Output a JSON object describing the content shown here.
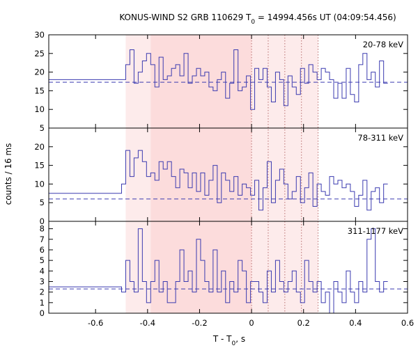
{
  "chart_data": {
    "type": "line",
    "title_parts": [
      "KONUS-WIND S2 GRB 110629 T",
      "0",
      " = 14994.456s UT (04:09:54.456)"
    ],
    "xlabel_parts": [
      "T - T",
      "0",
      ", s"
    ],
    "ylabel": "counts / 16 ms",
    "xlim": [
      -0.78,
      0.6
    ],
    "x_ticks": [
      "-0.6",
      "-0.4",
      "-0.2",
      "0",
      "0.2",
      "0.4",
      "0.6"
    ],
    "x_tick_values": [
      -0.6,
      -0.4,
      -0.2,
      0,
      0.2,
      0.4,
      0.6
    ],
    "bin_width_s": 0.016,
    "shaded_intervals": [
      {
        "from": -0.484,
        "to": -0.388,
        "color": "#fdebeb"
      },
      {
        "from": -0.388,
        "to": 0.0,
        "color": "#fcdcdc"
      },
      {
        "from": 0.0,
        "to": 0.256,
        "color": "#fdebeb"
      }
    ],
    "vertical_markers": [
      0.0,
      0.064,
      0.128,
      0.192,
      0.256
    ],
    "line_color": "#3b3bb0",
    "panels": [
      {
        "name": "20-78 keV",
        "ylim": [
          5,
          30
        ],
        "y_ticks": [
          "5",
          "10",
          "15",
          "20",
          "25",
          "30"
        ],
        "y_tick_values": [
          5,
          10,
          15,
          20,
          25,
          30
        ],
        "background": 17.3,
        "pre_start": -0.78,
        "pre_level": 18,
        "bin_start": -0.5,
        "values": [
          18,
          22,
          26,
          17,
          20,
          23,
          25,
          22,
          16,
          24,
          18,
          19,
          21,
          22,
          19,
          25,
          17,
          19,
          21,
          19,
          20,
          16,
          15,
          18,
          20,
          13,
          17,
          26,
          15,
          16,
          19,
          10,
          21,
          18,
          21,
          16,
          12,
          20,
          18,
          11,
          19,
          16,
          14,
          21,
          17,
          22,
          20,
          18,
          21,
          20,
          18,
          13,
          17,
          13,
          21,
          14,
          12,
          22,
          25,
          18,
          20,
          16,
          23,
          17
        ]
      },
      {
        "name": "78-311 keV",
        "ylim": [
          0,
          25
        ],
        "y_ticks": [
          "0",
          "5",
          "10",
          "15",
          "20"
        ],
        "y_tick_values": [
          0,
          5,
          10,
          15,
          20
        ],
        "background": 6.0,
        "pre_start": -0.78,
        "pre_level": 7.5,
        "bin_start": -0.5,
        "values": [
          10,
          19,
          12,
          17,
          19,
          16,
          12,
          13,
          11,
          16,
          14,
          16,
          12,
          9,
          14,
          13,
          9,
          13,
          8,
          13,
          7,
          11,
          15,
          5,
          13,
          11,
          8,
          12,
          7,
          10,
          9,
          7,
          11,
          3,
          9,
          16,
          5,
          11,
          14,
          10,
          6,
          8,
          12,
          5,
          9,
          13,
          4,
          10,
          8,
          7,
          12,
          10,
          11,
          9,
          10,
          8,
          4,
          7,
          11,
          3,
          8,
          9,
          5,
          10
        ]
      },
      {
        "name": "311-1177 keV",
        "ylim": [
          0,
          8.7
        ],
        "y_ticks": [
          "0",
          "1",
          "2",
          "3",
          "4",
          "5",
          "6",
          "7",
          "8"
        ],
        "y_tick_values": [
          0,
          1,
          2,
          3,
          4,
          5,
          6,
          7,
          8
        ],
        "background": 2.3,
        "pre_start": -0.78,
        "pre_level": 2.5,
        "bin_start": -0.5,
        "values": [
          2,
          5,
          3,
          2,
          8,
          3,
          1,
          3,
          5,
          2,
          3,
          1,
          1,
          3,
          6,
          3,
          4,
          2,
          7,
          5,
          3,
          2,
          6,
          2,
          4,
          1,
          3,
          2,
          5,
          4,
          1,
          3,
          3,
          2,
          1,
          4,
          2,
          5,
          3,
          2,
          3,
          4,
          2,
          1,
          5,
          3,
          2,
          3,
          1,
          2,
          0,
          3,
          2,
          1,
          4,
          2,
          1,
          3,
          2,
          7,
          8,
          3,
          2,
          3
        ]
      }
    ]
  }
}
